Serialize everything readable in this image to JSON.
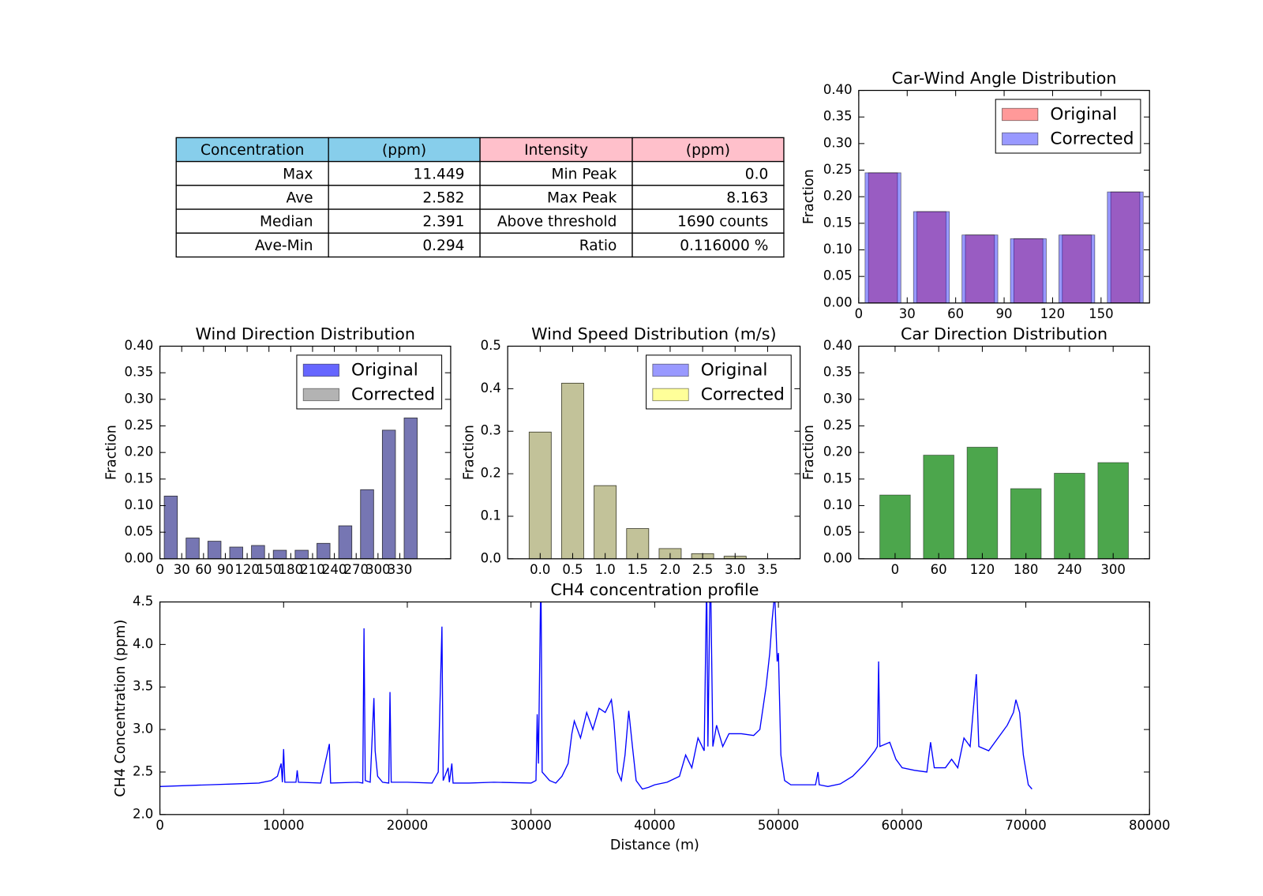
{
  "table": {
    "header": [
      "Concentration",
      "(ppm)",
      "Intensity",
      "(ppm)"
    ],
    "header_colors": [
      "#87ceeb",
      "#87ceeb",
      "#ffc0cb",
      "#ffc0cb"
    ],
    "rows": [
      [
        "Max",
        "11.449",
        "Min Peak",
        "0.0"
      ],
      [
        "Ave",
        "2.582",
        "Max Peak",
        "8.163"
      ],
      [
        "Median",
        "2.391",
        "Above threshold",
        "1690 counts"
      ],
      [
        "Ave-Min",
        "0.294",
        "Ratio",
        "0.116000 %"
      ]
    ]
  },
  "chart_data": [
    {
      "type": "histogram",
      "title": "Car-Wind Angle Distribution",
      "ylabel": "Fraction",
      "bins": [
        0,
        30,
        60,
        90,
        120,
        150,
        180
      ],
      "series": [
        {
          "name": "Original",
          "color": "#ff0000",
          "alpha": 0.4,
          "values": [
            0.245,
            0.172,
            0.128,
            0.121,
            0.128,
            0.209
          ]
        },
        {
          "name": "Corrected",
          "color": "#0000ff",
          "alpha": 0.4,
          "values": [
            0.245,
            0.172,
            0.128,
            0.121,
            0.128,
            0.209
          ]
        }
      ],
      "xlim": [
        0,
        180
      ],
      "ylim": [
        0,
        0.4
      ],
      "xticks": [
        0,
        30,
        60,
        90,
        120,
        150
      ],
      "yticks": [
        {
          "value": 0,
          "label": "0.00"
        },
        {
          "value": 0.05,
          "label": "0.05"
        },
        {
          "value": 0.1,
          "label": "0.10"
        },
        {
          "value": 0.15,
          "label": "0.15"
        },
        {
          "value": 0.2,
          "label": "0.20"
        },
        {
          "value": 0.25,
          "label": "0.25"
        },
        {
          "value": 0.3,
          "label": "0.30"
        },
        {
          "value": 0.35,
          "label": "0.35"
        },
        {
          "value": 0.4,
          "label": "0.40"
        }
      ],
      "legend": "upper right"
    },
    {
      "type": "histogram",
      "title": "Wind Direction Distribution",
      "ylabel": "Fraction",
      "bins": [
        0,
        30,
        60,
        90,
        120,
        150,
        180,
        210,
        240,
        270,
        300,
        330,
        360
      ],
      "series": [
        {
          "name": "Original",
          "color": "#0000ff",
          "alpha": 0.6,
          "values": [
            0.118,
            0.039,
            0.033,
            0.022,
            0.025,
            0.016,
            0.016,
            0.029,
            0.062,
            0.13,
            0.242,
            0.265
          ]
        },
        {
          "name": "Corrected",
          "color": "#808080",
          "alpha": 0.6,
          "values": [
            0.118,
            0.039,
            0.033,
            0.022,
            0.025,
            0.016,
            0.016,
            0.029,
            0.062,
            0.13,
            0.242,
            0.265
          ]
        }
      ],
      "xlim": [
        0,
        400
      ],
      "ylim": [
        0,
        0.4
      ],
      "xticks": [
        0,
        30,
        60,
        90,
        120,
        150,
        180,
        210,
        240,
        270,
        300,
        330
      ],
      "yticks": [
        {
          "value": 0,
          "label": "0.00"
        },
        {
          "value": 0.05,
          "label": "0.05"
        },
        {
          "value": 0.1,
          "label": "0.10"
        },
        {
          "value": 0.15,
          "label": "0.15"
        },
        {
          "value": 0.2,
          "label": "0.20"
        },
        {
          "value": 0.25,
          "label": "0.25"
        },
        {
          "value": 0.3,
          "label": "0.30"
        },
        {
          "value": 0.35,
          "label": "0.35"
        },
        {
          "value": 0.4,
          "label": "0.40"
        }
      ],
      "legend": "upper right"
    },
    {
      "type": "bar",
      "title": "Wind Speed Distribution (m/s)",
      "ylabel": "Fraction",
      "x": [
        0,
        0.5,
        1.0,
        1.5,
        2.0,
        2.5,
        3.0
      ],
      "series": [
        {
          "name": "Original",
          "color": "#0000ff",
          "alpha": 0.4,
          "values": [
            0.298,
            0.413,
            0.172,
            0.071,
            0.024,
            0.012,
            0.006
          ]
        },
        {
          "name": "Corrected",
          "color": "#ffff00",
          "alpha": 0.4,
          "values": [
            0.298,
            0.413,
            0.172,
            0.071,
            0.024,
            0.012,
            0.006
          ]
        }
      ],
      "xlim": [
        -0.5,
        4.0
      ],
      "ylim": [
        0,
        0.5
      ],
      "xticks": [
        {
          "value": 0,
          "label": "0.0"
        },
        {
          "value": 0.5,
          "label": "0.5"
        },
        {
          "value": 1,
          "label": "1.0"
        },
        {
          "value": 1.5,
          "label": "1.5"
        },
        {
          "value": 2,
          "label": "2.0"
        },
        {
          "value": 2.5,
          "label": "2.5"
        },
        {
          "value": 3,
          "label": "3.0"
        },
        {
          "value": 3.5,
          "label": "3.5"
        }
      ],
      "yticks": [
        {
          "value": 0,
          "label": "0.0"
        },
        {
          "value": 0.1,
          "label": "0.1"
        },
        {
          "value": 0.2,
          "label": "0.2"
        },
        {
          "value": 0.3,
          "label": "0.3"
        },
        {
          "value": 0.4,
          "label": "0.4"
        },
        {
          "value": 0.5,
          "label": "0.5"
        }
      ],
      "legend": "upper right"
    },
    {
      "type": "bar",
      "title": "Car Direction Distribution",
      "ylabel": "Fraction",
      "x": [
        0,
        60,
        120,
        180,
        240,
        300
      ],
      "series": [
        {
          "color": "#008000",
          "alpha": 0.7,
          "values": [
            0.12,
            0.195,
            0.21,
            0.132,
            0.161,
            0.181
          ]
        }
      ],
      "xlim": [
        -50,
        350
      ],
      "ylim": [
        0,
        0.4
      ],
      "xticks": [
        0,
        60,
        120,
        180,
        240,
        300
      ],
      "yticks": [
        {
          "value": 0,
          "label": "0.00"
        },
        {
          "value": 0.05,
          "label": "0.05"
        },
        {
          "value": 0.1,
          "label": "0.10"
        },
        {
          "value": 0.15,
          "label": "0.15"
        },
        {
          "value": 0.2,
          "label": "0.20"
        },
        {
          "value": 0.25,
          "label": "0.25"
        },
        {
          "value": 0.3,
          "label": "0.30"
        },
        {
          "value": 0.35,
          "label": "0.35"
        },
        {
          "value": 0.4,
          "label": "0.40"
        }
      ]
    },
    {
      "type": "line",
      "title": "CH4 concentration profile",
      "xlabel": "Distance (m)",
      "ylabel": "CH4 Concentration (ppm)",
      "x": [
        0,
        2000,
        4000,
        6000,
        8000,
        9000,
        9500,
        9800,
        9900,
        10000,
        10100,
        11000,
        11100,
        11200,
        13000,
        13700,
        13800,
        16000,
        16400,
        16500,
        16600,
        17000,
        17300,
        17400,
        17600,
        18000,
        18500,
        18600,
        18700,
        20000,
        22000,
        22500,
        22800,
        22900,
        23300,
        23400,
        23600,
        23700,
        25000,
        27000,
        30000,
        30400,
        30500,
        30600,
        30800,
        30900,
        31500,
        32000,
        32500,
        33000,
        33300,
        33500,
        34000,
        34500,
        35000,
        35500,
        36000,
        36500,
        36700,
        37000,
        37300,
        37600,
        37900,
        38200,
        38500,
        39000,
        39500,
        40000,
        41000,
        42000,
        42500,
        43000,
        43500,
        44000,
        44200,
        44300,
        44500,
        44700,
        45000,
        45500,
        46000,
        47000,
        48000,
        48500,
        49000,
        49300,
        49500,
        49700,
        49900,
        50000,
        50200,
        50500,
        51000,
        52000,
        53000,
        53200,
        53300,
        54000,
        55000,
        56000,
        57000,
        57800,
        58000,
        58100,
        58200,
        59000,
        59500,
        60000,
        61000,
        62000,
        62300,
        62600,
        63500,
        64000,
        64500,
        65000,
        65500,
        66000,
        66200,
        67000,
        68000,
        68500,
        69000,
        69200,
        69500,
        69800,
        70200,
        70500
      ],
      "values": [
        2.33,
        2.34,
        2.35,
        2.36,
        2.37,
        2.4,
        2.45,
        2.6,
        2.38,
        2.77,
        2.38,
        2.38,
        2.52,
        2.38,
        2.37,
        2.83,
        2.37,
        2.38,
        2.37,
        4.19,
        2.4,
        2.38,
        3.37,
        2.75,
        2.45,
        2.38,
        2.37,
        3.44,
        2.38,
        2.38,
        2.37,
        2.5,
        4.21,
        2.4,
        2.55,
        2.38,
        2.6,
        2.37,
        2.37,
        2.38,
        2.37,
        2.4,
        3.18,
        2.6,
        4.9,
        2.5,
        2.4,
        2.37,
        2.45,
        2.6,
        2.95,
        3.1,
        2.9,
        3.2,
        3.0,
        3.25,
        3.2,
        3.35,
        3.1,
        2.5,
        2.4,
        2.7,
        3.22,
        2.8,
        2.4,
        2.3,
        2.32,
        2.35,
        2.38,
        2.45,
        2.7,
        2.55,
        2.9,
        2.75,
        4.8,
        2.8,
        5.0,
        2.8,
        3.05,
        2.8,
        2.95,
        2.95,
        2.93,
        3.0,
        3.5,
        3.9,
        4.3,
        4.6,
        3.8,
        3.9,
        2.7,
        2.4,
        2.35,
        2.35,
        2.35,
        2.5,
        2.35,
        2.33,
        2.36,
        2.45,
        2.6,
        2.75,
        2.8,
        3.8,
        2.8,
        2.85,
        2.65,
        2.55,
        2.52,
        2.5,
        2.85,
        2.55,
        2.55,
        2.65,
        2.55,
        2.9,
        2.8,
        3.65,
        2.8,
        2.75,
        2.95,
        3.05,
        3.2,
        3.35,
        3.2,
        2.7,
        2.35,
        2.3
      ],
      "color": "#0000ff",
      "xlim": [
        0,
        80000
      ],
      "ylim": [
        2.0,
        4.5
      ],
      "xticks": [
        0,
        10000,
        20000,
        30000,
        40000,
        50000,
        60000,
        70000,
        80000
      ],
      "yticks": [
        {
          "value": 2,
          "label": "2.0"
        },
        {
          "value": 2.5,
          "label": "2.5"
        },
        {
          "value": 3,
          "label": "3.0"
        },
        {
          "value": 3.5,
          "label": "3.5"
        },
        {
          "value": 4,
          "label": "4.0"
        },
        {
          "value": 4.5,
          "label": "4.5"
        }
      ]
    }
  ]
}
